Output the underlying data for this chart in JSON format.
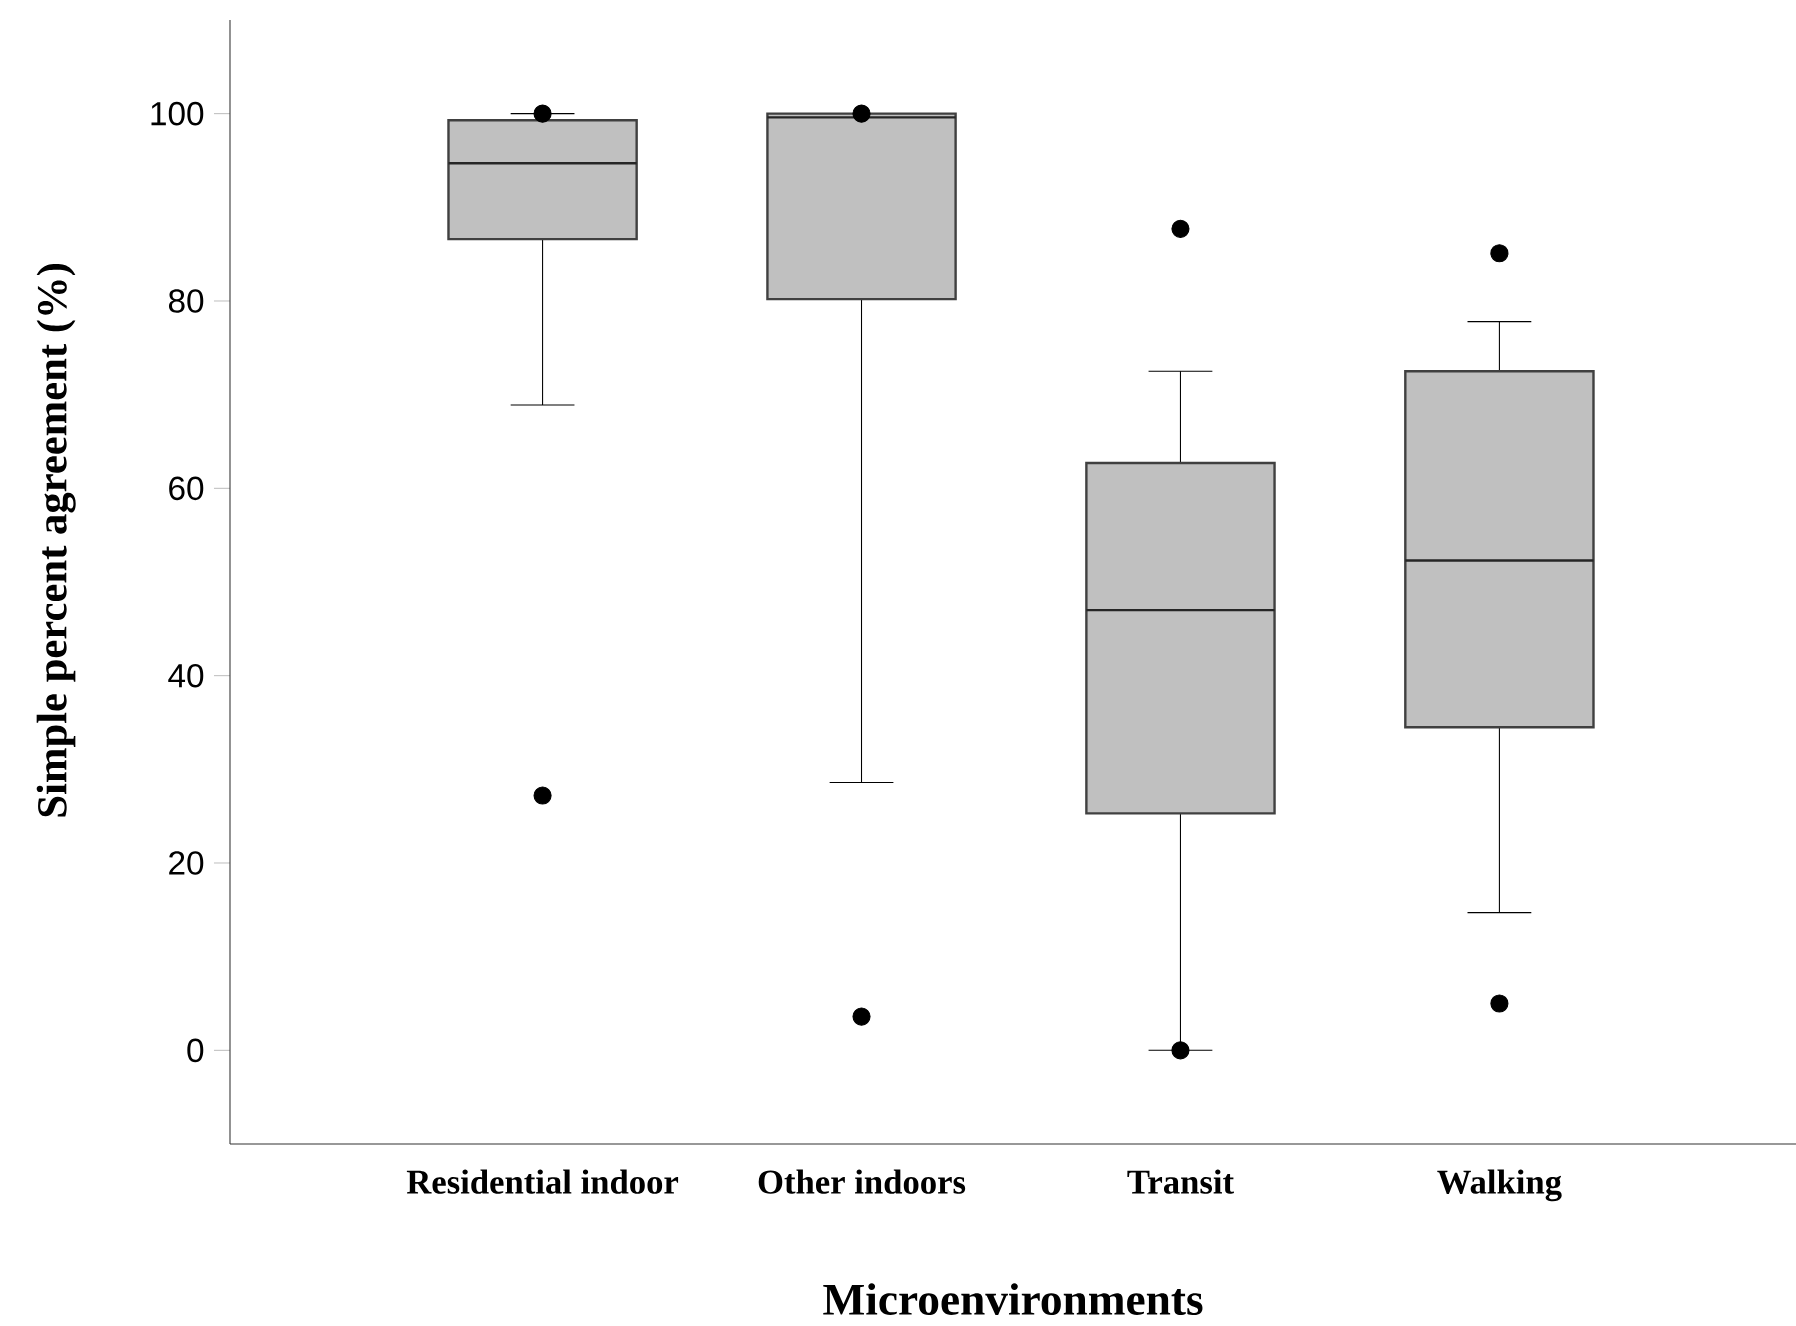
{
  "chart_data": {
    "type": "box",
    "xlabel": "Microenvironments",
    "ylabel": "Simple percent agreement (%)",
    "categories": [
      "Residential indoor",
      "Other indoors",
      "Transit",
      "Walking"
    ],
    "boxes": [
      {
        "low": 68.9,
        "q1": 86.6,
        "median": 94.7,
        "q3": 99.3,
        "high": 100,
        "outliers": [
          27.2,
          100
        ]
      },
      {
        "low": 28.6,
        "q1": 80.2,
        "median": 99.6,
        "q3": 100,
        "high": 100,
        "outliers": [
          3.6,
          100
        ]
      },
      {
        "low": 0,
        "q1": 25.3,
        "median": 47.0,
        "q3": 62.7,
        "high": 72.5,
        "outliers": [
          87.7,
          0
        ]
      },
      {
        "low": 14.7,
        "q1": 34.5,
        "median": 52.3,
        "q3": 72.5,
        "high": 77.8,
        "outliers": [
          85.1,
          5.0
        ]
      }
    ],
    "color": "#c0c0c0",
    "marker": "circle",
    "ylim": [
      -10,
      110
    ],
    "yticks": [
      0,
      20,
      40,
      60,
      80,
      100
    ]
  }
}
